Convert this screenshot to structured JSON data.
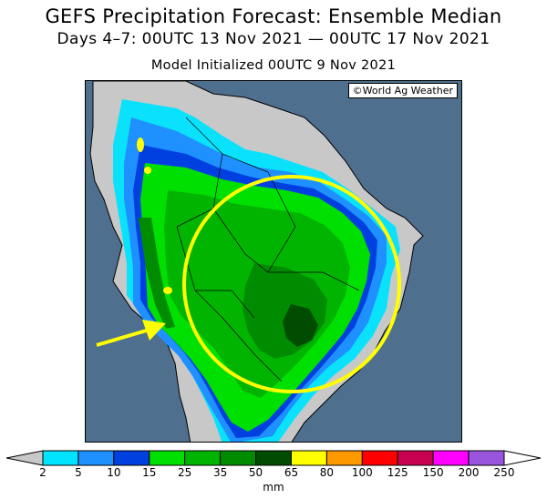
{
  "title": "GEFS Precipitation Forecast: Ensemble Median",
  "subtitle": "Days 4–7: 00UTC 13 Nov 2021 — 00UTC 17 Nov 2021",
  "initialized": "Model Initialized 00UTC 9 Nov 2021",
  "credit": "©World Ag Weather",
  "legend": {
    "unit": "mm",
    "ticks": [
      "2",
      "5",
      "10",
      "15",
      "25",
      "35",
      "50",
      "65",
      "80",
      "100",
      "125",
      "150",
      "200",
      "250"
    ],
    "colors": [
      "#00e4ff",
      "#1e90ff",
      "#0040e0",
      "#00e000",
      "#00b400",
      "#008c00",
      "#004c00",
      "#ffff00",
      "#ff9900",
      "#ff0000",
      "#c80050",
      "#ff00ff",
      "#9955dd"
    ],
    "below_color": "#c8c8c8",
    "above_color": "#ffffff"
  },
  "annotations": {
    "circle_color": "#ffff00",
    "arrow_color": "#ffff00"
  }
}
